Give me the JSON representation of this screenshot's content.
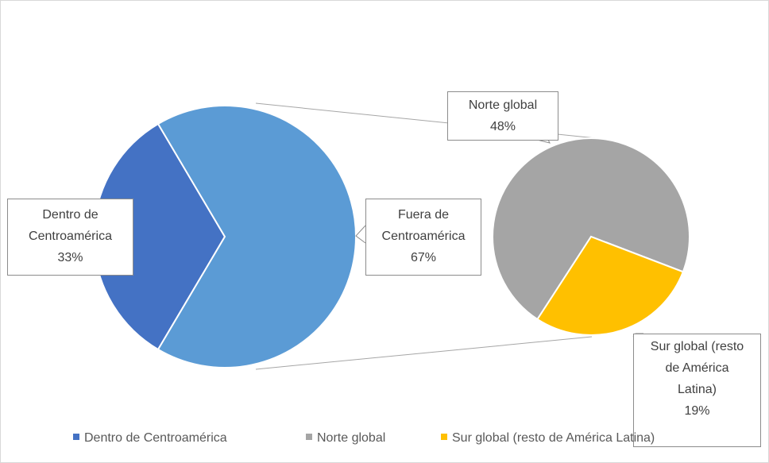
{
  "chart_data": {
    "type": "pie-of-pie",
    "primary": {
      "categories": [
        "Dentro de Centroamérica",
        "Fuera de Centroamérica"
      ],
      "values": [
        33,
        67
      ],
      "value_labels": [
        "33%",
        "67%"
      ],
      "colors": [
        "#4472c4",
        "#5b9bd5"
      ]
    },
    "secondary": {
      "categories": [
        "Norte global",
        "Sur global (resto de América Latina)"
      ],
      "values": [
        48,
        19
      ],
      "value_labels": [
        "48%",
        "19%"
      ],
      "colors": [
        "#a5a5a5",
        "#ffc000"
      ]
    },
    "legend": "bottom"
  }
}
